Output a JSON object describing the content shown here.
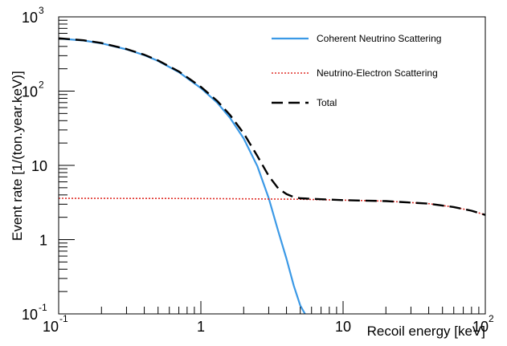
{
  "chart_data": {
    "type": "line",
    "title": "",
    "xlabel": "Recoil energy [keV]",
    "ylabel": "Event rate [1/(ton.year.keV)]",
    "xscale": "log",
    "yscale": "log",
    "xlim": [
      0.1,
      100
    ],
    "ylim": [
      0.1,
      1000
    ],
    "grid": false,
    "legend_position": "top-right",
    "x_ticks": [
      {
        "value": 0.1,
        "base": "10",
        "exp": "-1"
      },
      {
        "value": 1,
        "base": "1",
        "exp": ""
      },
      {
        "value": 10,
        "base": "10",
        "exp": ""
      },
      {
        "value": 100,
        "base": "10",
        "exp": "2"
      }
    ],
    "y_ticks": [
      {
        "value": 0.1,
        "base": "10",
        "exp": "-1"
      },
      {
        "value": 1,
        "base": "1",
        "exp": ""
      },
      {
        "value": 10,
        "base": "10",
        "exp": ""
      },
      {
        "value": 100,
        "base": "10",
        "exp": "2"
      },
      {
        "value": 1000,
        "base": "10",
        "exp": "3"
      }
    ],
    "series": [
      {
        "name": "Coherent Neutrino Scattering",
        "color": "#3b99e6",
        "style": "solid",
        "x": [
          0.1,
          0.15,
          0.2,
          0.3,
          0.4,
          0.5,
          0.7,
          1.0,
          1.3,
          1.6,
          2.0,
          2.5,
          3.0,
          3.5,
          4.0,
          4.5,
          5.0,
          5.4
        ],
        "y": [
          510,
          480,
          440,
          365,
          305,
          255,
          180,
          110,
          70,
          44,
          23,
          9.7,
          3.6,
          1.3,
          0.55,
          0.24,
          0.13,
          0.1
        ]
      },
      {
        "name": "Neutrino-Electron Scattering",
        "color": "#e0302a",
        "style": "dotted",
        "x": [
          0.1,
          1,
          5,
          10,
          20,
          40,
          60,
          80,
          100
        ],
        "y": [
          3.6,
          3.58,
          3.5,
          3.4,
          3.3,
          3.05,
          2.75,
          2.45,
          2.15
        ]
      },
      {
        "name": "Total",
        "color": "#000000",
        "style": "dashed",
        "x": [
          0.1,
          0.15,
          0.2,
          0.3,
          0.4,
          0.5,
          0.7,
          1.0,
          1.3,
          1.6,
          2.0,
          2.5,
          3.0,
          3.5,
          4.0,
          4.5,
          5.0,
          7.0,
          10,
          20,
          40,
          60,
          80,
          100
        ],
        "y": [
          514,
          484,
          444,
          369,
          309,
          259,
          184,
          114,
          74,
          48,
          27,
          13.3,
          7.2,
          4.9,
          4.1,
          3.75,
          3.6,
          3.5,
          3.4,
          3.3,
          3.05,
          2.75,
          2.45,
          2.15
        ]
      }
    ]
  }
}
